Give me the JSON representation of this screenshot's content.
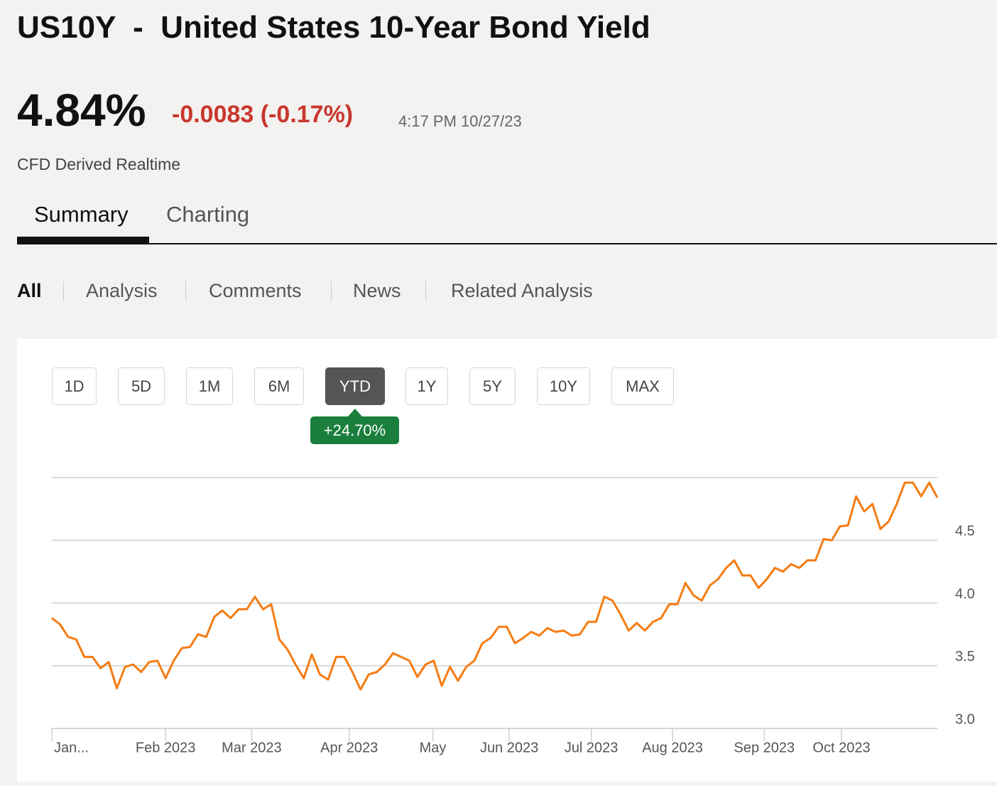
{
  "header": {
    "title": "US10Y  -  United States 10-Year Bond Yield",
    "price": "4.84%",
    "change": "-0.0083 (-0.17%)",
    "time": "4:17 PM 10/27/23",
    "source": "CFD Derived Realtime"
  },
  "tabs": [
    "Summary",
    "Charting"
  ],
  "active_tab": 0,
  "subtabs": [
    "All",
    "Analysis",
    "Comments",
    "News",
    "Related Analysis"
  ],
  "active_subtab": 0,
  "ranges": [
    "1D",
    "5D",
    "1M",
    "6M",
    "YTD",
    "1Y",
    "5Y",
    "10Y",
    "MAX"
  ],
  "selected_range": 4,
  "range_change": "+24.70%",
  "chart_data": {
    "type": "line",
    "color": "#f57c14",
    "grid": true,
    "values": [
      3.88,
      3.83,
      3.73,
      3.71,
      3.57,
      3.57,
      3.48,
      3.53,
      3.32,
      3.49,
      3.51,
      3.45,
      3.53,
      3.54,
      3.4,
      3.54,
      3.64,
      3.65,
      3.75,
      3.73,
      3.89,
      3.94,
      3.88,
      3.95,
      3.95,
      4.05,
      3.95,
      3.99,
      3.71,
      3.63,
      3.51,
      3.4,
      3.59,
      3.43,
      3.39,
      3.57,
      3.57,
      3.45,
      3.31,
      3.43,
      3.45,
      3.51,
      3.6,
      3.57,
      3.54,
      3.41,
      3.51,
      3.54,
      3.34,
      3.49,
      3.38,
      3.49,
      3.54,
      3.68,
      3.72,
      3.81,
      3.81,
      3.68,
      3.72,
      3.77,
      3.74,
      3.8,
      3.77,
      3.78,
      3.74,
      3.75,
      3.85,
      3.85,
      4.05,
      4.02,
      3.91,
      3.78,
      3.84,
      3.78,
      3.85,
      3.88,
      3.99,
      3.99,
      4.16,
      4.06,
      4.02,
      4.14,
      4.19,
      4.28,
      4.34,
      4.22,
      4.22,
      4.12,
      4.19,
      4.28,
      4.25,
      4.31,
      4.28,
      4.34,
      4.34,
      4.51,
      4.5,
      4.61,
      4.62,
      4.85,
      4.73,
      4.79,
      4.59,
      4.65,
      4.79,
      4.96,
      4.96,
      4.85,
      4.96,
      4.84
    ],
    "xlim": [
      0,
      109
    ],
    "xticks": [
      {
        "value": 0,
        "label": "Jan..."
      },
      {
        "value": 14,
        "label": "Feb 2023"
      },
      {
        "value": 24.6,
        "label": "Mar 2023"
      },
      {
        "value": 36.6,
        "label": "Apr 2023"
      },
      {
        "value": 46.9,
        "label": "May"
      },
      {
        "value": 56.3,
        "label": "Jun 2023"
      },
      {
        "value": 66.4,
        "label": "Jul 2023"
      },
      {
        "value": 76.4,
        "label": "Aug 2023"
      },
      {
        "value": 87.7,
        "label": "Sep 2023"
      },
      {
        "value": 97.2,
        "label": "Oct 2023"
      }
    ],
    "ylim": [
      3,
      5
    ],
    "yticks": [
      {
        "value": 3,
        "label": "3.0"
      },
      3.5,
      {
        "value": 4,
        "label": "4.0"
      },
      4.5
    ]
  }
}
